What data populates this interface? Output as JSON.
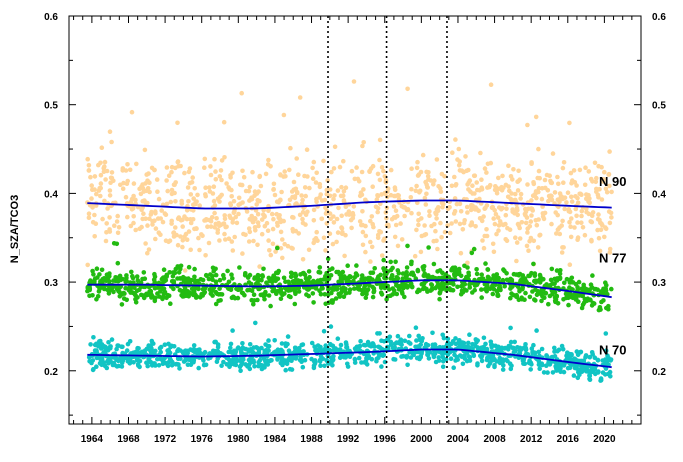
{
  "chart_data": {
    "type": "scatter",
    "title": "",
    "xlabel": "",
    "ylabel": "N_SZA/TCO3",
    "xlim": [
      1961.5,
      2024
    ],
    "ylim": [
      0.14,
      0.6
    ],
    "x_ticks": [
      1964,
      1968,
      1972,
      1976,
      1980,
      1984,
      1988,
      1992,
      1996,
      2000,
      2004,
      2008,
      2012,
      2016,
      2020
    ],
    "y_ticks": [
      0.2,
      0.3,
      0.4,
      0.5,
      0.6
    ],
    "x_start": 1963.5,
    "x_end": 2020.8,
    "vertical_lines": [
      1989.8,
      1996.2,
      2002.8
    ],
    "grid": false,
    "legend": "none",
    "series": [
      {
        "name": "N 90",
        "color": "#ffd59a",
        "trend_color": "#0000cc",
        "trend": [
          [
            1963.5,
            0.389
          ],
          [
            1970,
            0.386
          ],
          [
            1976,
            0.383
          ],
          [
            1982,
            0.383
          ],
          [
            1988,
            0.386
          ],
          [
            1994,
            0.39
          ],
          [
            2000,
            0.392
          ],
          [
            2004,
            0.392
          ],
          [
            2010,
            0.389
          ],
          [
            2016,
            0.386
          ],
          [
            2020.8,
            0.384
          ]
        ],
        "spread_low": 0.33,
        "spread_high": 0.46,
        "outlier_max": 0.53
      },
      {
        "name": "N 77",
        "color": "#22bb11",
        "trend_color": "#0000cc",
        "trend": [
          [
            1963.5,
            0.297
          ],
          [
            1970,
            0.297
          ],
          [
            1976,
            0.296
          ],
          [
            1982,
            0.295
          ],
          [
            1988,
            0.296
          ],
          [
            1994,
            0.299
          ],
          [
            2000,
            0.302
          ],
          [
            2004,
            0.302
          ],
          [
            2010,
            0.298
          ],
          [
            2016,
            0.29
          ],
          [
            2020.8,
            0.283
          ]
        ],
        "spread_low": 0.275,
        "spread_high": 0.32,
        "outlier_max": 0.345
      },
      {
        "name": "N 70",
        "color": "#11c4c4",
        "trend_color": "#0000cc",
        "trend": [
          [
            1963.5,
            0.218
          ],
          [
            1970,
            0.217
          ],
          [
            1976,
            0.216
          ],
          [
            1982,
            0.217
          ],
          [
            1988,
            0.219
          ],
          [
            1994,
            0.221
          ],
          [
            2000,
            0.224
          ],
          [
            2004,
            0.224
          ],
          [
            2010,
            0.218
          ],
          [
            2016,
            0.21
          ],
          [
            2020.8,
            0.204
          ]
        ],
        "spread_low": 0.2,
        "spread_high": 0.238,
        "outlier_max": 0.255
      }
    ]
  }
}
